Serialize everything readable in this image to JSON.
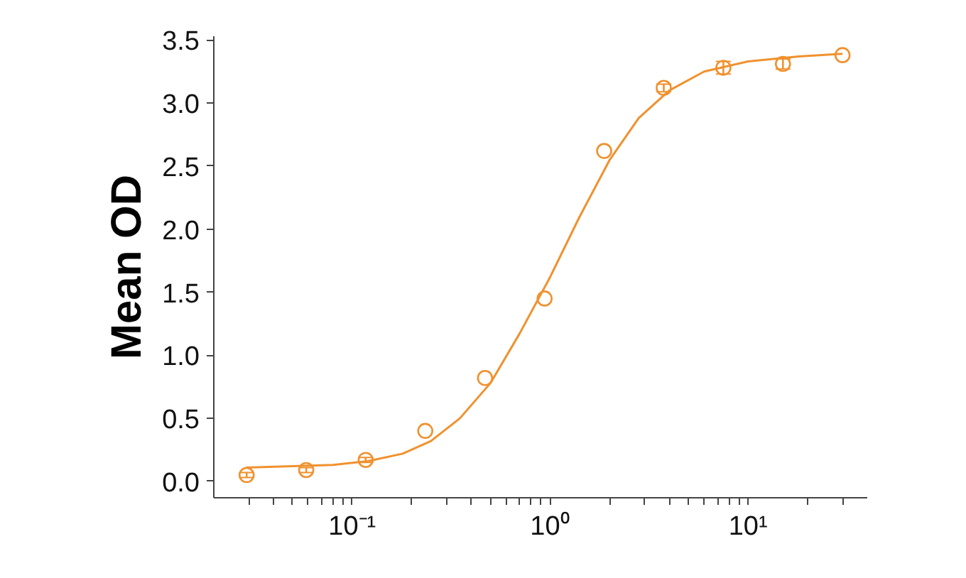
{
  "chart_data": {
    "type": "scatter",
    "ylabel": "Mean OD",
    "log": "x",
    "grid": false,
    "xlim": [
      0.02,
      40
    ],
    "ylim": [
      -0.13,
      3.53
    ],
    "xticks": [
      {
        "value": 0.03,
        "label": null
      },
      {
        "value": 0.04,
        "label": null
      },
      {
        "value": 0.05,
        "label": null
      },
      {
        "value": 0.06,
        "label": null
      },
      {
        "value": 0.07,
        "label": null
      },
      {
        "value": 0.08,
        "label": null
      },
      {
        "value": 0.09,
        "label": null
      },
      {
        "value": 0.1,
        "label": "10⁻¹"
      },
      {
        "value": 0.2,
        "label": null
      },
      {
        "value": 0.3,
        "label": null
      },
      {
        "value": 0.4,
        "label": null
      },
      {
        "value": 0.5,
        "label": null
      },
      {
        "value": 0.6,
        "label": null
      },
      {
        "value": 0.7,
        "label": null
      },
      {
        "value": 0.8,
        "label": null
      },
      {
        "value": 0.9,
        "label": null
      },
      {
        "value": 1,
        "label": "10⁰"
      },
      {
        "value": 2,
        "label": null
      },
      {
        "value": 3,
        "label": null
      },
      {
        "value": 4,
        "label": null
      },
      {
        "value": 5,
        "label": null
      },
      {
        "value": 6,
        "label": null
      },
      {
        "value": 7,
        "label": null
      },
      {
        "value": 8,
        "label": null
      },
      {
        "value": 9,
        "label": null
      },
      {
        "value": 10,
        "label": "10¹"
      },
      {
        "value": 20,
        "label": null
      },
      {
        "value": 30,
        "label": null
      }
    ],
    "yticks": [
      {
        "value": 0,
        "label": "0.0"
      },
      {
        "value": 0.5,
        "label": "0.5"
      },
      {
        "value": 1,
        "label": "1.0"
      },
      {
        "value": 1.5,
        "label": "1.5"
      },
      {
        "value": 2,
        "label": "2.0"
      },
      {
        "value": 2.5,
        "label": "2.5"
      },
      {
        "value": 3,
        "label": "3.0"
      },
      {
        "value": 3.5,
        "label": "3.5"
      }
    ],
    "series": [
      {
        "marker": "circle",
        "color": "#f0912e",
        "x": [
          0.0293,
          0.0586,
          0.117,
          0.234,
          0.469,
          0.9375,
          1.875,
          3.75,
          7.5,
          15,
          30
        ],
        "values": [
          0.05,
          0.09,
          0.17,
          0.4,
          0.82,
          1.45,
          2.62,
          3.12,
          3.28,
          3.31,
          3.38
        ],
        "errors": [
          0.02,
          0.02,
          0.02,
          null,
          null,
          null,
          null,
          0.03,
          0.05,
          0.04,
          null
        ]
      },
      {
        "type": "line",
        "marker": "none",
        "color": "#f0912e",
        "x": [
          0.029,
          0.05,
          0.08,
          0.12,
          0.18,
          0.25,
          0.35,
          0.5,
          0.7,
          1.0,
          1.4,
          2.0,
          2.8,
          4.0,
          6.0,
          10,
          18,
          30
        ],
        "values": [
          0.11,
          0.12,
          0.13,
          0.16,
          0.22,
          0.32,
          0.5,
          0.78,
          1.17,
          1.62,
          2.09,
          2.55,
          2.88,
          3.1,
          3.25,
          3.33,
          3.37,
          3.39
        ]
      }
    ]
  }
}
